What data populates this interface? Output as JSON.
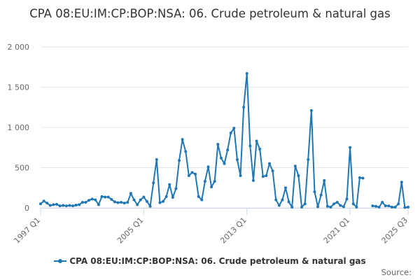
{
  "chart_data": {
    "type": "line",
    "title": "CPA 08:EU:IM:CP:BOP:NSA: 06. Crude petroleum & natural gas",
    "xlabel": "",
    "ylabel": "",
    "ylim": [
      0,
      2000
    ],
    "yticks": [
      0,
      500,
      1000,
      1500,
      2000
    ],
    "ytick_labels": [
      "0",
      "500",
      "1 000",
      "1 500",
      "2 000"
    ],
    "xtick_labels": [
      "1997 Q1",
      "2005 Q1",
      "2013 Q1",
      "2021 Q1",
      "2025 Q3"
    ],
    "grid": "horizontal",
    "legend": "bottom",
    "series": [
      {
        "name": "CPA 08:EU:IM:CP:BOP:NSA: 06. Crude petroleum & natural gas",
        "color": "#1f77b4",
        "x": [
          "1997 Q1",
          "1997 Q2",
          "1997 Q3",
          "1997 Q4",
          "1998 Q1",
          "1998 Q2",
          "1998 Q3",
          "1998 Q4",
          "1999 Q1",
          "1999 Q2",
          "1999 Q3",
          "1999 Q4",
          "2000 Q1",
          "2000 Q2",
          "2000 Q3",
          "2000 Q4",
          "2001 Q1",
          "2001 Q2",
          "2001 Q3",
          "2001 Q4",
          "2002 Q1",
          "2002 Q2",
          "2002 Q3",
          "2002 Q4",
          "2003 Q1",
          "2003 Q2",
          "2003 Q3",
          "2003 Q4",
          "2004 Q1",
          "2004 Q2",
          "2004 Q3",
          "2004 Q4",
          "2005 Q1",
          "2005 Q2",
          "2005 Q3",
          "2005 Q4",
          "2006 Q1",
          "2006 Q2",
          "2006 Q3",
          "2006 Q4",
          "2007 Q1",
          "2007 Q2",
          "2007 Q3",
          "2007 Q4",
          "2008 Q1",
          "2008 Q2",
          "2008 Q3",
          "2008 Q4",
          "2009 Q1",
          "2009 Q2",
          "2009 Q3",
          "2009 Q4",
          "2010 Q1",
          "2010 Q2",
          "2010 Q3",
          "2010 Q4",
          "2011 Q1",
          "2011 Q2",
          "2011 Q3",
          "2011 Q4",
          "2012 Q1",
          "2012 Q2",
          "2012 Q3",
          "2012 Q4",
          "2013 Q1",
          "2013 Q2",
          "2013 Q3",
          "2013 Q4",
          "2014 Q1",
          "2014 Q2",
          "2014 Q3",
          "2014 Q4",
          "2015 Q1",
          "2015 Q2",
          "2015 Q3",
          "2015 Q4",
          "2016 Q1",
          "2016 Q2",
          "2016 Q3",
          "2016 Q4",
          "2017 Q1",
          "2017 Q2",
          "2017 Q3",
          "2017 Q4",
          "2018 Q1",
          "2018 Q2",
          "2018 Q3",
          "2018 Q4",
          "2019 Q1",
          "2019 Q2",
          "2019 Q3",
          "2019 Q4",
          "2020 Q1",
          "2020 Q2",
          "2020 Q3",
          "2020 Q4",
          "2021 Q1",
          "2021 Q2",
          "2021 Q3",
          "2021 Q4",
          "2022 Q1",
          "2022 Q2",
          "2022 Q3",
          "2022 Q4",
          "2023 Q1",
          "2023 Q2",
          "2023 Q3",
          "2023 Q4",
          "2024 Q1",
          "2024 Q2",
          "2024 Q3",
          "2024 Q4",
          "2025 Q1",
          "2025 Q2",
          "2025 Q3"
        ],
        "values": [
          50,
          85,
          60,
          30,
          40,
          45,
          25,
          30,
          25,
          30,
          25,
          35,
          40,
          70,
          70,
          95,
          110,
          100,
          40,
          140,
          135,
          135,
          105,
          75,
          65,
          70,
          60,
          70,
          180,
          100,
          40,
          100,
          135,
          80,
          20,
          310,
          600,
          65,
          80,
          140,
          290,
          130,
          240,
          590,
          850,
          700,
          400,
          440,
          420,
          140,
          100,
          330,
          510,
          260,
          330,
          790,
          620,
          550,
          720,
          930,
          990,
          600,
          400,
          1250,
          1670,
          770,
          340,
          830,
          730,
          390,
          400,
          550,
          460,
          100,
          30,
          100,
          250,
          75,
          10,
          520,
          400,
          10,
          50,
          600,
          1210,
          200,
          15,
          160,
          340,
          20,
          10,
          50,
          70,
          30,
          15,
          110,
          750,
          50,
          10,
          375,
          370,
          null,
          null,
          25,
          20,
          10,
          70,
          25,
          25,
          10,
          10,
          50,
          320,
          5,
          10
        ]
      }
    ]
  },
  "legend_label": "CPA 08:EU:IM:CP:BOP:NSA: 06. Crude petroleum & natural gas",
  "credits": "Source:"
}
